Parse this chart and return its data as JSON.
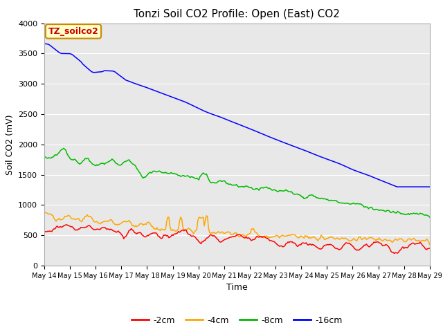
{
  "title": "Tonzi Soil CO2 Profile: Open (East) CO2",
  "xlabel": "Time",
  "ylabel": "Soil CO2 (mV)",
  "ylim": [
    0,
    4000
  ],
  "annotation": "TZ_soilco2",
  "legend": [
    "-2cm",
    "-4cm",
    "-8cm",
    "-16cm"
  ],
  "legend_colors": [
    "#ff0000",
    "#ffa500",
    "#00bb00",
    "#0000ff"
  ],
  "xtick_labels": [
    "May 14",
    "May 15",
    "May 16",
    "May 17",
    "May 18",
    "May 19",
    "May 20",
    "May 21",
    "May 22",
    "May 23",
    "May 24",
    "May 25",
    "May 26",
    "May 27",
    "May 28",
    "May 29"
  ],
  "ytick_values": [
    0,
    500,
    1000,
    1500,
    2000,
    2500,
    3000,
    3500,
    4000
  ],
  "ytick_labels": [
    "0",
    "500",
    "1000",
    "1500",
    "2000",
    "2500",
    "3000",
    "3500",
    "4000"
  ],
  "bg_color": "#e8e8e8",
  "plot_bg": "#e8e8e8",
  "grid_color": "#ffffff",
  "title_fontsize": 11,
  "axis_label_fontsize": 9,
  "tick_fontsize": 8
}
